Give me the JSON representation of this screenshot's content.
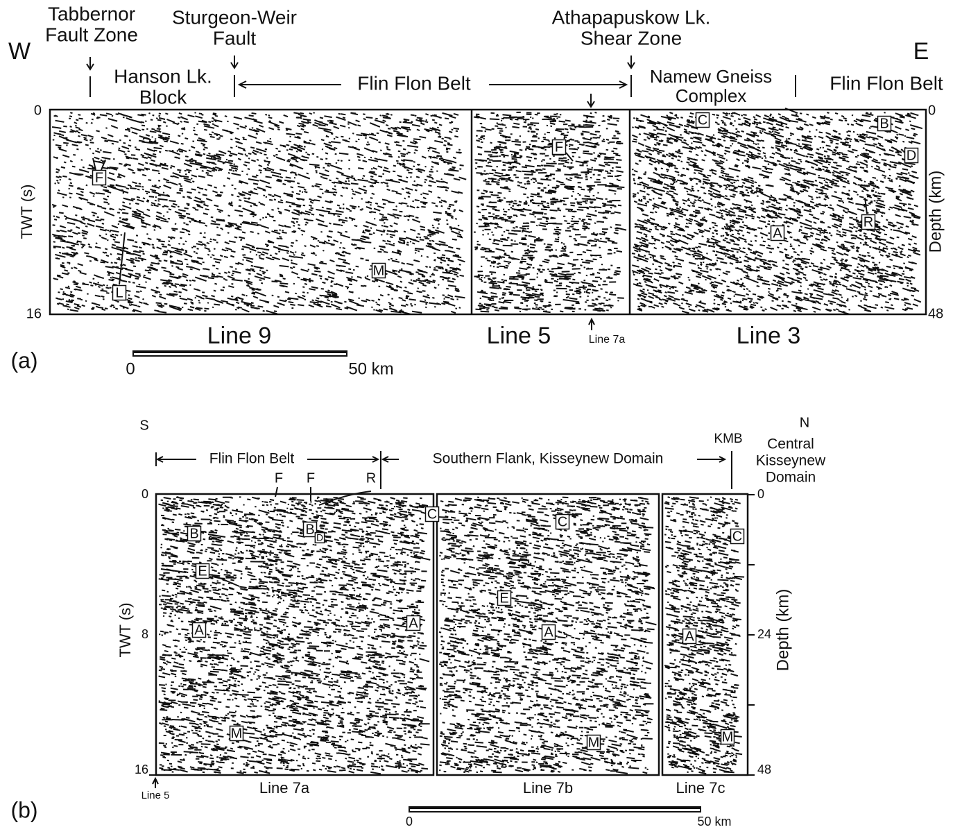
{
  "panel_a": {
    "label": "(a)",
    "west": "W",
    "east": "E",
    "headers": {
      "tabbernor": [
        "Tabbernor",
        "Fault Zone"
      ],
      "sturgeon_weir": [
        "Sturgeon-Weir",
        "Fault"
      ],
      "athapapuskow": [
        "Athapapuskow Lk.",
        "Shear Zone"
      ],
      "hanson": [
        "Hanson Lk.",
        "Block"
      ],
      "flin_flon_mid": "Flin Flon Belt",
      "namew": [
        "Namew Gneiss",
        "Complex"
      ],
      "flin_flon_east": "Flin Flon Belt"
    },
    "twt_label": "TWT (s)",
    "twt_ticks": [
      0,
      16
    ],
    "depth_label": "Depth (km)",
    "depth_ticks": [
      0,
      48
    ],
    "sections": [
      "Line 9",
      "Line 5",
      "Line 3"
    ],
    "crossing": "Line 7a",
    "markers": [
      "F",
      "F",
      "C",
      "B",
      "D",
      "R",
      "A",
      "L",
      "M"
    ],
    "scale": {
      "start": 0,
      "end": "50 km"
    }
  },
  "panel_b": {
    "label": "(b)",
    "south": "S",
    "north": "N",
    "kmb": "KMB",
    "central": [
      "Central",
      "Kisseynew",
      "Domain"
    ],
    "flin_flon": "Flin Flon Belt",
    "southern_flank": "Southern Flank, Kisseynew Domain",
    "faults": [
      "F",
      "F",
      "R"
    ],
    "twt_label": "TWT (s)",
    "twt_ticks": [
      0,
      8,
      16
    ],
    "depth_label": "Depth (km)",
    "depth_ticks": [
      0,
      24,
      48
    ],
    "sections": [
      "Line 7a",
      "Line 7b",
      "Line 7c"
    ],
    "crossing": "Line 5",
    "markers": [
      "C",
      "B",
      "B",
      "D",
      "E",
      "A",
      "A",
      "C",
      "E",
      "A",
      "C",
      "A",
      "M",
      "M",
      "M"
    ],
    "scale": {
      "start": 0,
      "end": "50 km"
    }
  }
}
